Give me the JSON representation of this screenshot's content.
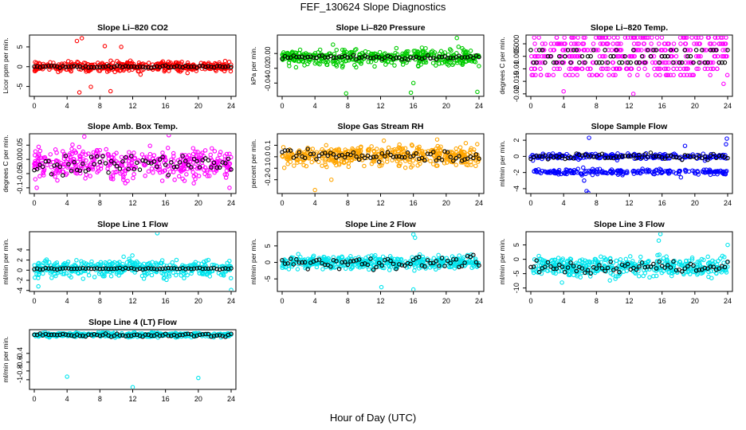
{
  "figure": {
    "title": "FEF_130624  Slope Diagnostics",
    "xlabel": "Hour of Day (UTC)"
  },
  "chart_data": [
    {
      "type": "scatter",
      "title": "Slope Li–820 CO2",
      "ylabel": "Licor ppm per min.",
      "color": "#ff0000",
      "xlim": [
        0,
        24
      ],
      "xticks": [
        0,
        4,
        8,
        12,
        16,
        20,
        24
      ],
      "ylim": [
        -7.5,
        8
      ],
      "yticks": [
        -5,
        0,
        5
      ],
      "center": 0,
      "noise": 1.1,
      "blackNoise": 0.25,
      "outliers": [
        [
          5.2,
          6.5
        ],
        [
          5.8,
          7.2
        ],
        [
          8.1,
          -7.8
        ],
        [
          9.3,
          -6.2
        ],
        [
          5.5,
          -6.5
        ],
        [
          8.6,
          5.2
        ],
        [
          10.6,
          5.0
        ],
        [
          6.9,
          -5.1
        ]
      ]
    },
    {
      "type": "scatter",
      "title": "Slope Li–820 Pressure",
      "ylabel": "kPa per min.",
      "color": "#00cc00",
      "xlim": [
        0,
        24
      ],
      "xticks": [
        0,
        4,
        8,
        12,
        16,
        20,
        24
      ],
      "ylim": [
        -0.058,
        0.025
      ],
      "yticks": [
        0.0,
        -0.02,
        -0.04
      ],
      "center": -0.005,
      "noise": 0.009,
      "blackNoise": 0.002,
      "outliers": [
        [
          7.8,
          -0.054
        ],
        [
          15.7,
          -0.053
        ],
        [
          23.8,
          -0.052
        ],
        [
          21.3,
          0.021
        ],
        [
          16.0,
          -0.04
        ],
        [
          6.2,
          0.012
        ]
      ]
    },
    {
      "type": "scatter",
      "title": "Slope Li–820 Temp.",
      "ylabel": "degrees C per min.",
      "color": "#ff00ff",
      "xlim": [
        0,
        24
      ],
      "xticks": [
        0,
        4,
        8,
        12,
        16,
        20,
        24
      ],
      "ylim": [
        -0.021,
        0.0035
      ],
      "yticks": [
        0.0,
        -0.005,
        -0.01,
        -0.015,
        -0.02
      ],
      "center": -0.006,
      "levels": [
        0.0025,
        0.0,
        -0.0025,
        -0.005,
        -0.0075,
        -0.01,
        -0.0125
      ],
      "outliers": [
        [
          4.0,
          -0.019
        ],
        [
          12.5,
          -0.02
        ],
        [
          23.5,
          -0.016
        ],
        [
          23.8,
          0.0025
        ],
        [
          12.2,
          0.0025
        ],
        [
          4.1,
          0.0025
        ]
      ]
    },
    {
      "type": "scatter",
      "title": "Slope Amb. Box Temp.",
      "ylabel": "degrees C per min.",
      "color": "#ff00ff",
      "xlim": [
        0,
        24
      ],
      "xticks": [
        0,
        4,
        8,
        12,
        16,
        20,
        24
      ],
      "ylim": [
        -0.12,
        0.09
      ],
      "yticks": [
        -0.1,
        -0.05,
        0.0,
        0.05
      ],
      "center": -0.015,
      "noise": 0.045,
      "blackNoise": 0.03,
      "outliers": [
        [
          0.3,
          -0.1
        ],
        [
          23.8,
          -0.1
        ],
        [
          6.1,
          0.08
        ],
        [
          16.4,
          0.085
        ]
      ]
    },
    {
      "type": "scatter",
      "title": "Slope Gas Stream RH",
      "ylabel": "percent per min.",
      "color": "#ffa500",
      "xlim": [
        0,
        24
      ],
      "xticks": [
        0,
        4,
        8,
        12,
        16,
        20,
        24
      ],
      "ylim": [
        -0.32,
        0.2
      ],
      "yticks": [
        0.1,
        0.0,
        -0.1,
        -0.2
      ],
      "center": 0.01,
      "noise": 0.07,
      "blackNoise": 0.04,
      "outliers": [
        [
          4.0,
          -0.29
        ],
        [
          12.4,
          0.14
        ],
        [
          6.0,
          -0.2
        ],
        [
          18.9,
          0.15
        ]
      ]
    },
    {
      "type": "scatter",
      "title": "Slope Sample Flow",
      "ylabel": "ml/min per min.",
      "color": "#0000ff",
      "xlim": [
        0,
        24
      ],
      "xticks": [
        0,
        4,
        8,
        12,
        16,
        20,
        24
      ],
      "ylim": [
        -4.6,
        2.8
      ],
      "yticks": [
        2,
        0,
        -2,
        -4
      ],
      "bands": [
        0,
        -1.9
      ],
      "noise": 0.3,
      "blackNoise": 0.3,
      "outliers": [
        [
          6.8,
          -4.3
        ],
        [
          7.0,
          -4.5
        ],
        [
          7.1,
          2.3
        ],
        [
          6.5,
          -3.0
        ],
        [
          18.8,
          1.3
        ],
        [
          18.3,
          -2.6
        ],
        [
          23.9,
          2.2
        ],
        [
          23.8,
          1.5
        ]
      ]
    },
    {
      "type": "scatter",
      "title": "Slope Line 1 Flow",
      "ylabel": "ml/min per min.",
      "color": "#00e5ee",
      "xlim": [
        0,
        24
      ],
      "xticks": [
        0,
        4,
        8,
        12,
        16,
        20,
        24
      ],
      "ylim": [
        -4.2,
        7.6
      ],
      "yticks": [
        -4,
        -2,
        0,
        2,
        4
      ],
      "center": 0.3,
      "noise": 1.4,
      "blackNoise": 0.12,
      "outliers": [
        [
          15.0,
          7.3
        ],
        [
          24.0,
          -3.9
        ],
        [
          0.5,
          -3.2
        ]
      ]
    },
    {
      "type": "scatter",
      "title": "Slope Line 2 Flow",
      "ylabel": "ml/min per min.",
      "color": "#00e5ee",
      "xlim": [
        0,
        24
      ],
      "xticks": [
        0,
        4,
        8,
        12,
        16,
        20,
        24
      ],
      "ylim": [
        -8.8,
        9.3
      ],
      "yticks": [
        -5,
        0,
        5
      ],
      "center": 0,
      "noise": 1.6,
      "blackNoise": 1.5,
      "outliers": [
        [
          16.0,
          8.5
        ],
        [
          16.0,
          -8.2
        ],
        [
          12.1,
          -7.5
        ],
        [
          16.2,
          7.5
        ]
      ]
    },
    {
      "type": "scatter",
      "title": "Slope Line 3 Flow",
      "ylabel": "ml/min per min.",
      "color": "#00e5ee",
      "xlim": [
        0,
        24
      ],
      "xticks": [
        0,
        4,
        8,
        12,
        16,
        20,
        24
      ],
      "ylim": [
        -11.2,
        9.6
      ],
      "yticks": [
        -10,
        -5,
        0,
        5
      ],
      "center": -2.5,
      "noise": 3.0,
      "blackNoise": 1.5,
      "outliers": [
        [
          15.8,
          8.8
        ],
        [
          15.6,
          6.5
        ],
        [
          24.0,
          5.0
        ]
      ]
    },
    {
      "type": "scatter",
      "title": "Slope Line 4 (LT) Flow",
      "ylabel": "ml/min per min.",
      "color": "#00e5ee",
      "xlim": [
        0,
        24
      ],
      "xticks": [
        0,
        4,
        8,
        12,
        16,
        20,
        24
      ],
      "ylim": [
        -1.22,
        0.14
      ],
      "yticks": [
        -1.0,
        -0.8,
        -0.6,
        -0.4
      ],
      "center": 0.02,
      "noise": 0.04,
      "blackNoise": 0.035,
      "outliers": [
        [
          4.0,
          -0.93
        ],
        [
          12.0,
          -1.17
        ],
        [
          20.0,
          -0.96
        ]
      ]
    }
  ]
}
